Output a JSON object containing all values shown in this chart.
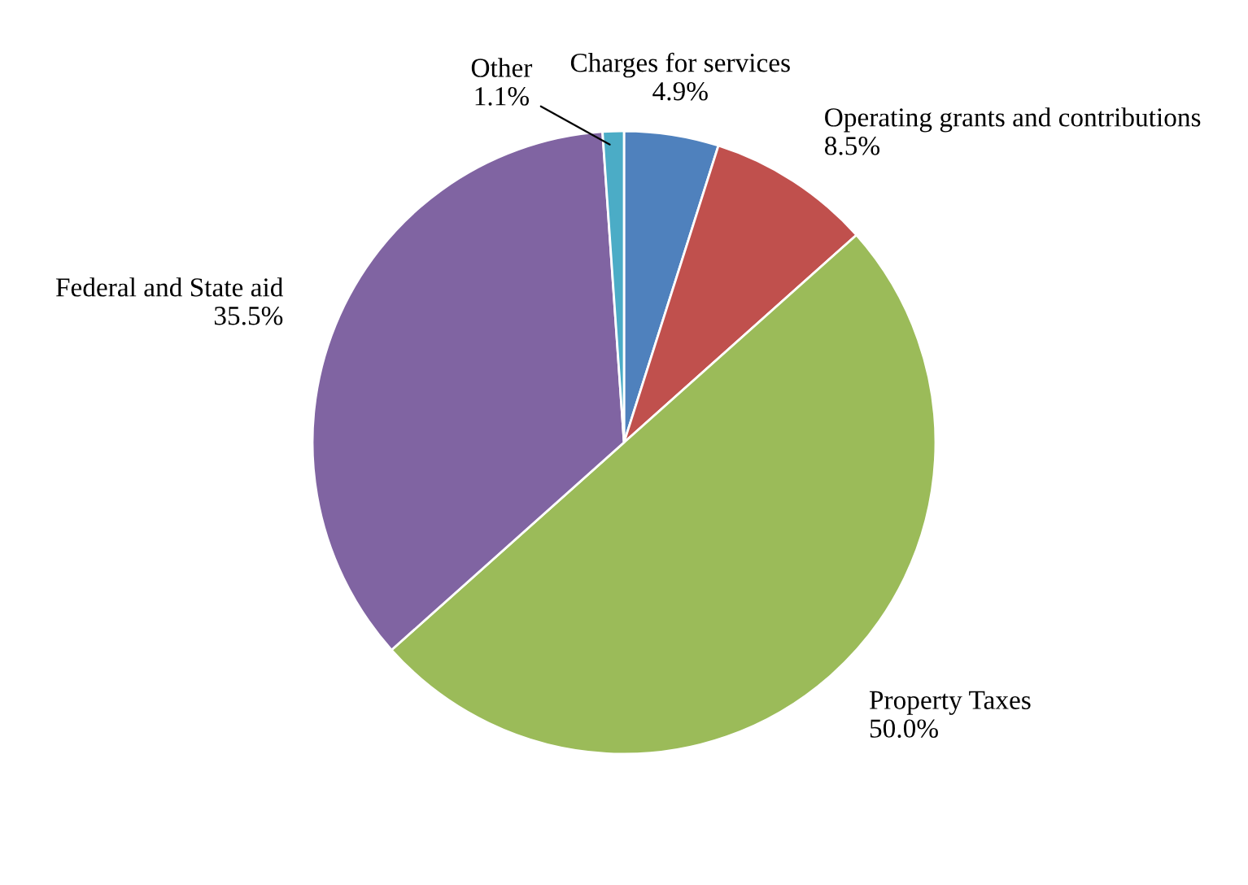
{
  "chart_data": {
    "type": "pie",
    "categories": [
      "Charges for services",
      "Operating grants and contributions",
      "Property Taxes",
      "Federal and State aid",
      "Other"
    ],
    "values": [
      4.9,
      8.5,
      50.0,
      35.5,
      1.1
    ],
    "value_labels": [
      "4.9%",
      "8.5%",
      "50.0%",
      "35.5%",
      "1.1%"
    ],
    "colors": [
      "#4f81bd",
      "#c0504d",
      "#9bbb59",
      "#8064a2",
      "#4bacc6"
    ],
    "legend": false
  }
}
